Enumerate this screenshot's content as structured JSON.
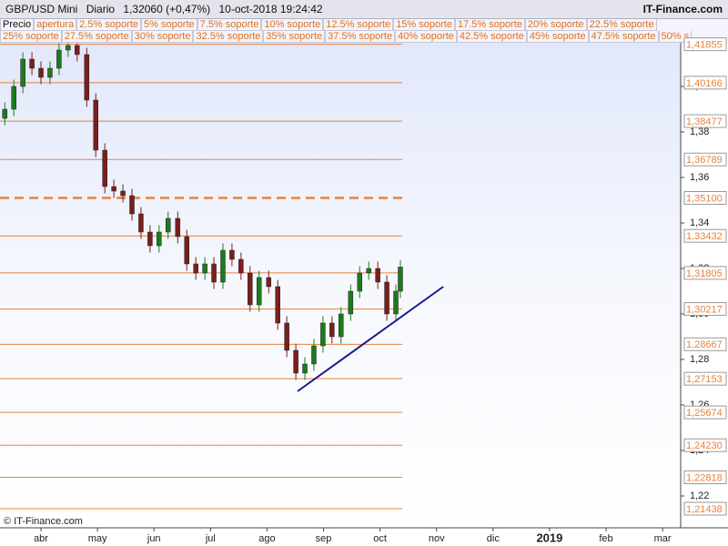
{
  "chart_data": {
    "type": "candlestick",
    "title": "GBP/USD Mini",
    "period": "Diario",
    "last": "1,32060 (+0,47%)",
    "timestamp": "10-oct-2018 19:24:42",
    "brand": "IT-Finance.com",
    "footer": "© IT-Finance.com",
    "legend_items": [
      "Precio",
      "apertura",
      "2.5% soporte",
      "5% soporte",
      "7.5% soporte",
      "10% soporte",
      "12.5% soporte",
      "15% soporte",
      "17.5% soporte",
      "20% soporte",
      "22.5% soporte",
      "25% soporte",
      "27.5% soporte",
      "30% soporte",
      "32.5% soporte",
      "35% soporte",
      "37.5% soporte",
      "40% soporte",
      "42.5% soporte",
      "45% soporte",
      "47.5% soporte",
      "50% s"
    ],
    "x": [
      -0.64,
      -0.48,
      -0.32,
      -0.16,
      0,
      0.16,
      0.32,
      0.48,
      0.64,
      0.81,
      0.97,
      1.13,
      1.29,
      1.45,
      1.61,
      1.77,
      1.93,
      2.09,
      2.25,
      2.42,
      2.58,
      2.74,
      2.9,
      3.06,
      3.22,
      3.38,
      3.54,
      3.7,
      3.86,
      4.03,
      4.19,
      4.35,
      4.51,
      4.67,
      4.83,
      4.99,
      5.15,
      5.31,
      5.48,
      5.64,
      5.8,
      5.96,
      6.12,
      6.28,
      6.36
    ],
    "open": [
      1.386,
      1.39,
      1.4,
      1.412,
      1.408,
      1.404,
      1.408,
      1.416,
      1.418,
      1.414,
      1.394,
      1.372,
      1.356,
      1.354,
      1.352,
      1.344,
      1.336,
      1.33,
      1.336,
      1.342,
      1.334,
      1.322,
      1.318,
      1.322,
      1.314,
      1.328,
      1.324,
      1.318,
      1.304,
      1.316,
      1.312,
      1.296,
      1.284,
      1.274,
      1.278,
      1.286,
      1.296,
      1.29,
      1.3,
      1.31,
      1.318,
      1.32,
      1.314,
      1.3,
      1.31
    ],
    "high": [
      1.393,
      1.403,
      1.415,
      1.415,
      1.411,
      1.411,
      1.419,
      1.419,
      1.419,
      1.417,
      1.397,
      1.375,
      1.359,
      1.357,
      1.355,
      1.347,
      1.339,
      1.339,
      1.345,
      1.345,
      1.337,
      1.325,
      1.325,
      1.325,
      1.331,
      1.331,
      1.327,
      1.321,
      1.319,
      1.319,
      1.315,
      1.299,
      1.287,
      1.281,
      1.289,
      1.299,
      1.299,
      1.303,
      1.313,
      1.321,
      1.323,
      1.323,
      1.317,
      1.313,
      1.3236
    ],
    "low": [
      1.383,
      1.387,
      1.397,
      1.405,
      1.401,
      1.401,
      1.405,
      1.413,
      1.411,
      1.391,
      1.369,
      1.353,
      1.351,
      1.349,
      1.341,
      1.333,
      1.327,
      1.327,
      1.333,
      1.331,
      1.319,
      1.315,
      1.315,
      1.311,
      1.311,
      1.321,
      1.315,
      1.301,
      1.301,
      1.309,
      1.293,
      1.281,
      1.271,
      1.271,
      1.275,
      1.283,
      1.287,
      1.287,
      1.297,
      1.307,
      1.315,
      1.311,
      1.297,
      1.297,
      1.307
    ],
    "close": [
      1.39,
      1.4,
      1.412,
      1.408,
      1.404,
      1.408,
      1.416,
      1.418,
      1.414,
      1.394,
      1.372,
      1.356,
      1.354,
      1.352,
      1.344,
      1.336,
      1.33,
      1.336,
      1.342,
      1.334,
      1.322,
      1.318,
      1.322,
      1.314,
      1.328,
      1.324,
      1.318,
      1.304,
      1.316,
      1.312,
      1.296,
      1.284,
      1.274,
      1.278,
      1.286,
      1.296,
      1.29,
      1.3,
      1.31,
      1.318,
      1.32,
      1.314,
      1.3,
      1.31,
      1.3206
    ],
    "up_color": "#1e7a1e",
    "down_color": "#7a1e1e",
    "levels": [
      {
        "value": 1.41855,
        "label": "1,41855"
      },
      {
        "value": 1.40166,
        "label": "1,40166"
      },
      {
        "value": 1.38477,
        "label": "1,38477"
      },
      {
        "value": 1.36789,
        "label": "1,36789"
      },
      {
        "value": 1.351,
        "label": "1,35100",
        "style": "dashed"
      },
      {
        "value": 1.33432,
        "label": "1,33432"
      },
      {
        "value": 1.31805,
        "label": "1,31805"
      },
      {
        "value": 1.30217,
        "label": "1,30217"
      },
      {
        "value": 1.28667,
        "label": "1,28667"
      },
      {
        "value": 1.27153,
        "label": "1,27153"
      },
      {
        "value": 1.25674,
        "label": "1,25674"
      },
      {
        "value": 1.2423,
        "label": "1,24230"
      },
      {
        "value": 1.22818,
        "label": "1,22818"
      },
      {
        "value": 1.21438,
        "label": "1,21438"
      }
    ],
    "level_color": "#e8823a",
    "trendline": {
      "x": [
        4.54,
        7.12
      ],
      "y": [
        1.266,
        1.312
      ],
      "color": "#1a1a8c"
    },
    "xlim": [
      -0.725,
      11.32
    ],
    "xticks": [
      {
        "value": 0,
        "label": "abr"
      },
      {
        "value": 1,
        "label": "may"
      },
      {
        "value": 2,
        "label": "jun"
      },
      {
        "value": 3,
        "label": "jul"
      },
      {
        "value": 4,
        "label": "ago"
      },
      {
        "value": 5,
        "label": "sep"
      },
      {
        "value": 6,
        "label": "oct"
      },
      {
        "value": 7,
        "label": "nov"
      },
      {
        "value": 8,
        "label": "dic"
      },
      {
        "value": 9,
        "label": "2019"
      },
      {
        "value": 10,
        "label": "feb"
      },
      {
        "value": 11,
        "label": "mar"
      }
    ],
    "ylim": [
      1.206,
      1.4192
    ],
    "yticks": [
      {
        "value": 1.22,
        "label": "1,22"
      },
      {
        "value": 1.24,
        "label": "1,24"
      },
      {
        "value": 1.26,
        "label": "1,26"
      },
      {
        "value": 1.28,
        "label": "1,28"
      },
      {
        "value": 1.3,
        "label": "1,30"
      },
      {
        "value": 1.32,
        "label": "1,32"
      },
      {
        "value": 1.34,
        "label": "1,34"
      },
      {
        "value": 1.36,
        "label": "1,36"
      },
      {
        "value": 1.38,
        "label": "1,38"
      },
      {
        "value": 1.4,
        "label": "1,40"
      }
    ]
  }
}
